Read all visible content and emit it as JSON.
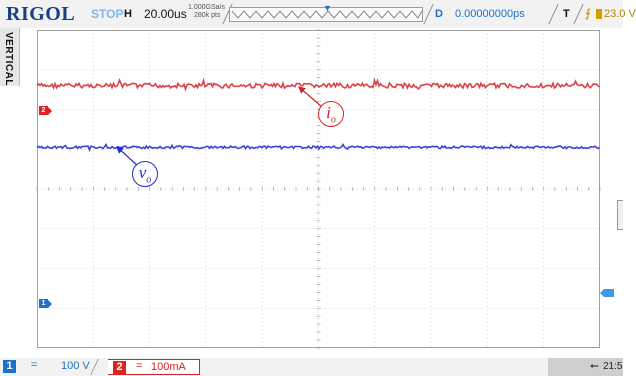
{
  "header": {
    "brand": "RIGOL",
    "run_state": "STOP",
    "horizontal_label": "H",
    "timebase": "20.00us",
    "sample_rate": "1.000GSa/s",
    "memory_depth": "280k pts",
    "delay_label": "D",
    "delay_value": "0.00000000ps",
    "trigger_label": "T",
    "trigger_level": "23.0 V"
  },
  "side_tab": {
    "label": "VERTICAL"
  },
  "channels": [
    {
      "number": "1",
      "coupling": "=",
      "scale": "100 V",
      "color": "#1e70c9"
    },
    {
      "number": "2",
      "coupling": "=",
      "scale": "100mA",
      "color": "#d22222"
    }
  ],
  "markers": {
    "ch1": "1",
    "ch2": "2"
  },
  "annotations": {
    "current": {
      "symbol": "i",
      "subscript": "o",
      "color": "#d22222"
    },
    "voltage": {
      "symbol": "v",
      "subscript": "o",
      "color": "#1a2fd0"
    }
  },
  "status": {
    "clock": "21:5",
    "usb_icon": "usb-icon"
  },
  "chart_data": {
    "type": "line",
    "title": "",
    "xlabel": "",
    "ylabel": "",
    "grid": true,
    "grid_divisions": {
      "x": 10,
      "y": 8
    },
    "series": [
      {
        "name": "",
        "trace": "CH2",
        "level_div": 2.6,
        "ripple_div": 0.06,
        "spike_div": 0.12,
        "color": "#d9434b"
      },
      {
        "name": "",
        "trace": "CH1",
        "level_div": 1.05,
        "ripple_div": 0.03,
        "spike_div": 0.07,
        "color": "#3a45d6"
      }
    ]
  }
}
